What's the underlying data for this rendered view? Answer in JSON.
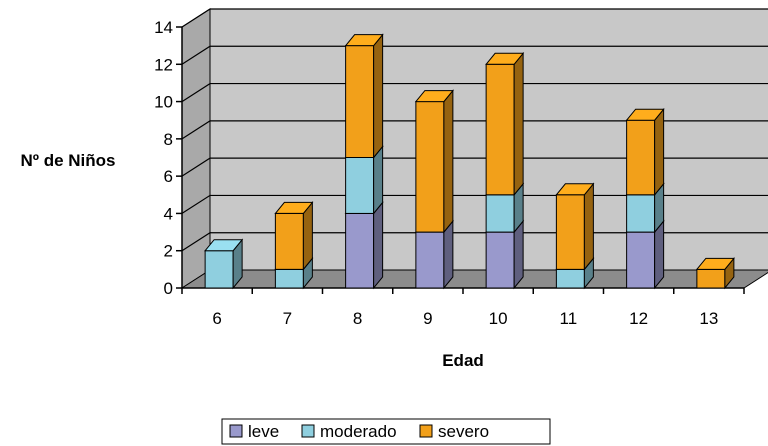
{
  "chart_data": {
    "type": "bar",
    "stacked": true,
    "three_d": true,
    "xlabel": "Edad",
    "ylabel": "Nº de Niños",
    "categories": [
      "6",
      "7",
      "8",
      "9",
      "10",
      "11",
      "12",
      "13"
    ],
    "series": [
      {
        "name": "leve",
        "values": [
          0,
          0,
          4,
          3,
          3,
          0,
          3,
          0
        ],
        "color": "#9999cc"
      },
      {
        "name": "moderado",
        "values": [
          2,
          1,
          3,
          0,
          2,
          1,
          2,
          0
        ],
        "color": "#8fcfdf"
      },
      {
        "name": "severo",
        "values": [
          0,
          3,
          6,
          7,
          7,
          4,
          4,
          1
        ],
        "color": "#f2a01a"
      }
    ],
    "ylim": [
      0,
      14
    ],
    "yticks": [
      0,
      2,
      4,
      6,
      8,
      10,
      12,
      14
    ],
    "grid": true,
    "legend_position": "bottom",
    "colors": {
      "wall": "#c8c8c8",
      "floor": "#8c8c8c",
      "edge": "#000000"
    }
  }
}
